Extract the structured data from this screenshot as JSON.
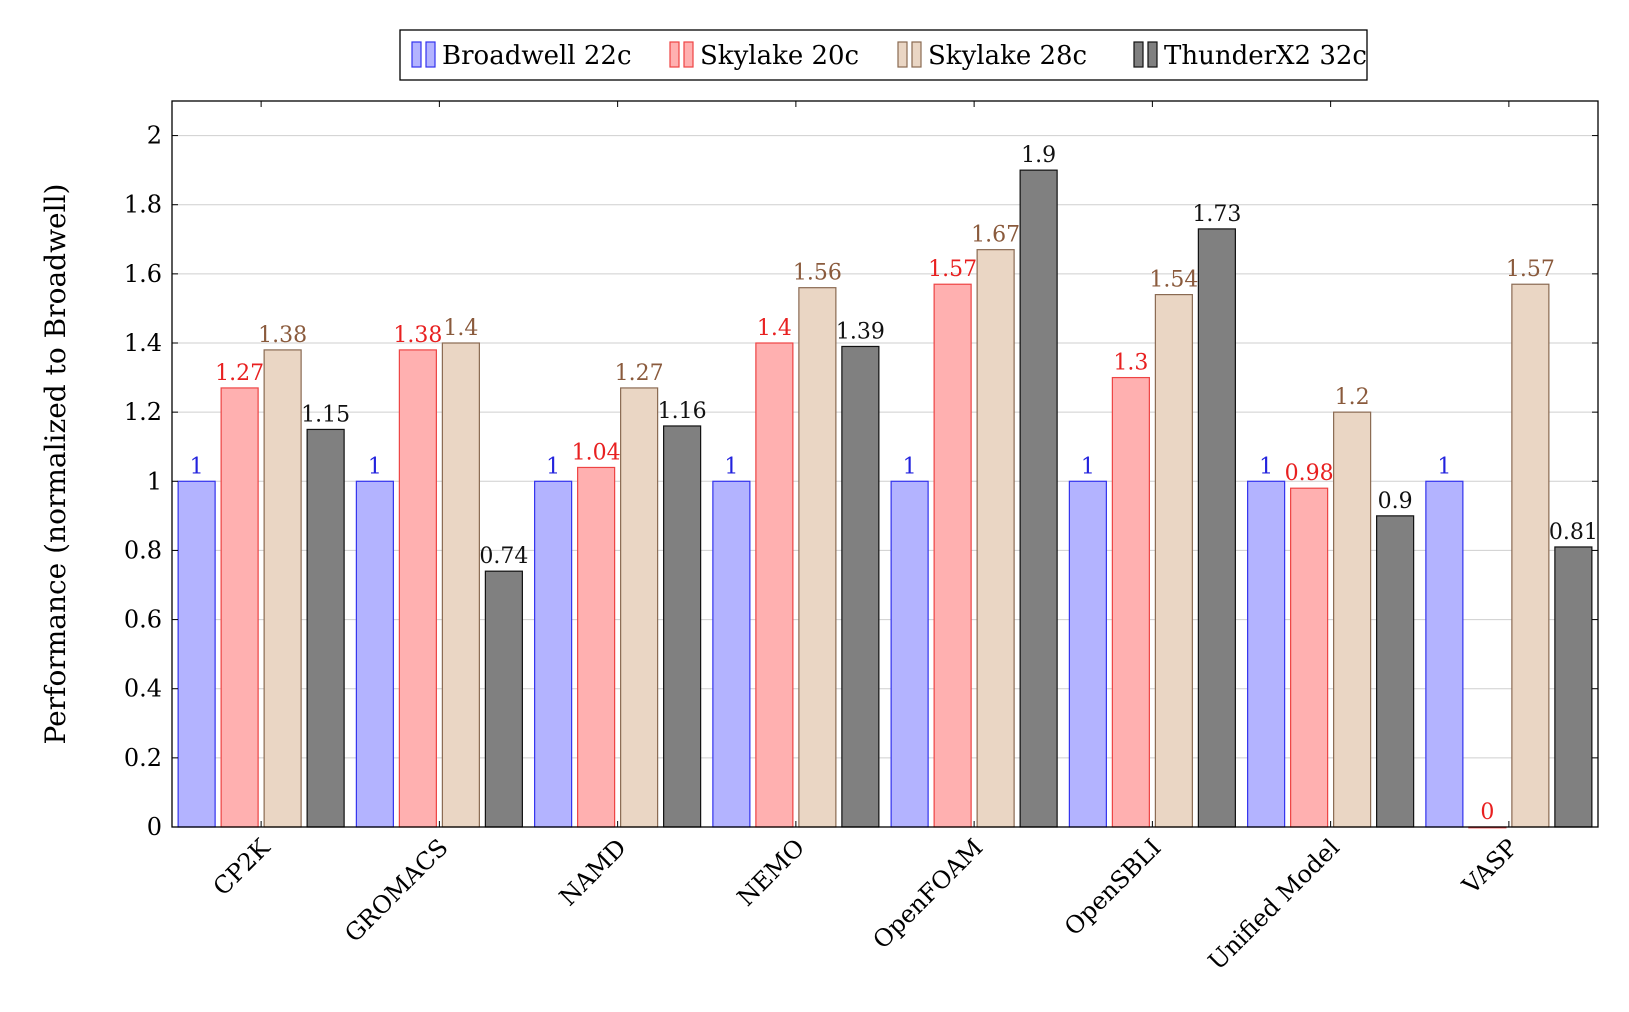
{
  "chart_data": {
    "type": "bar",
    "ylabel": "Performance (normalized to Broadwell)",
    "xlabel": "",
    "ylim": [
      0,
      2.1
    ],
    "yticks": [
      0,
      0.2,
      0.4,
      0.6,
      0.8,
      1,
      1.2,
      1.4,
      1.6,
      1.8,
      2
    ],
    "ytick_labels": [
      "0",
      "0.2",
      "0.4",
      "0.6",
      "0.8",
      "1",
      "1.2",
      "1.4",
      "1.6",
      "1.8",
      "2"
    ],
    "grid": true,
    "legend_position": "top-center",
    "categories": [
      "CP2K",
      "GROMACS",
      "NAMD",
      "NEMO",
      "OpenFOAM",
      "OpenSBLI",
      "Unified Model",
      "VASP"
    ],
    "series": [
      {
        "name": "Broadwell 22c",
        "fill": "#b3b3ff",
        "stroke": "#3333ee",
        "label_color": "#2222dd",
        "values": [
          1,
          1,
          1,
          1,
          1,
          1,
          1,
          1
        ],
        "labels": [
          "1",
          "1",
          "1",
          "1",
          "1",
          "1",
          "1",
          "1"
        ]
      },
      {
        "name": "Skylake 20c",
        "fill": "#ffb0b0",
        "stroke": "#ee4444",
        "label_color": "#e82020",
        "values": [
          1.27,
          1.38,
          1.04,
          1.4,
          1.57,
          1.3,
          0.98,
          0
        ],
        "labels": [
          "1.27",
          "1.38",
          "1.04",
          "1.4",
          "1.57",
          "1.3",
          "0.98",
          "0"
        ]
      },
      {
        "name": "Skylake 28c",
        "fill": "#ead6c4",
        "stroke": "#8a6a52",
        "label_color": "#8a5a3c",
        "values": [
          1.38,
          1.4,
          1.27,
          1.56,
          1.67,
          1.54,
          1.2,
          1.57
        ],
        "labels": [
          "1.38",
          "1.4",
          "1.27",
          "1.56",
          "1.67",
          "1.54",
          "1.2",
          "1.57"
        ]
      },
      {
        "name": "ThunderX2 32c",
        "fill": "#808080",
        "stroke": "#111111",
        "label_color": "#111111",
        "values": [
          1.15,
          0.74,
          1.16,
          1.39,
          1.9,
          1.73,
          0.9,
          0.81
        ],
        "labels": [
          "1.15",
          "0.74",
          "1.16",
          "1.39",
          "1.9",
          "1.73",
          "0.9",
          "0.81"
        ]
      }
    ]
  }
}
